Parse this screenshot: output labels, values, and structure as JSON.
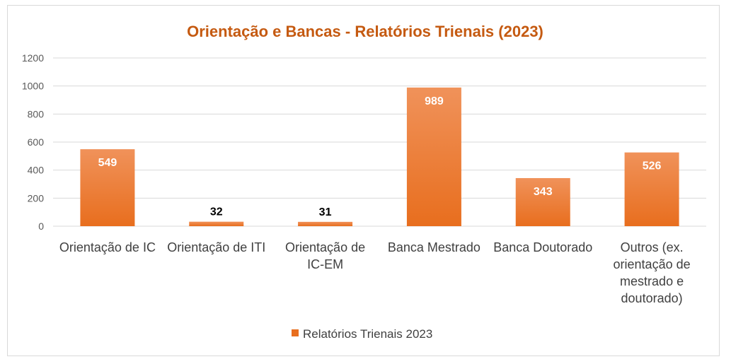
{
  "chart_data": {
    "type": "bar",
    "title": "Orientação e Bancas - Relatórios Trienais (2023)",
    "xlabel": "",
    "ylabel": "",
    "ylim": [
      0,
      1200
    ],
    "yticks": [
      "0",
      "200",
      "400",
      "600",
      "800",
      "1000",
      "1200"
    ],
    "grid": true,
    "legend_position": "bottom",
    "categories": [
      "Orientação de IC",
      "Orientação de ITI",
      "Orientação de IC-EM",
      "Banca Mestrado",
      "Banca Doutorado",
      "Outros (ex. orientação de mestrado e doutorado)"
    ],
    "series": [
      {
        "name": "Relatórios Trienais 2023",
        "values": [
          549,
          32,
          31,
          989,
          343,
          526
        ],
        "data_labels": [
          "549",
          "32",
          "31",
          "989",
          "343",
          "526"
        ]
      }
    ],
    "colors": {
      "bar_top": "#F0925A",
      "bar_bottom": "#E86E1E",
      "title": "#C55A11",
      "grid": "#D9D9D9",
      "label_inside": "#FFFFFF",
      "label_outside": "#000000"
    }
  }
}
